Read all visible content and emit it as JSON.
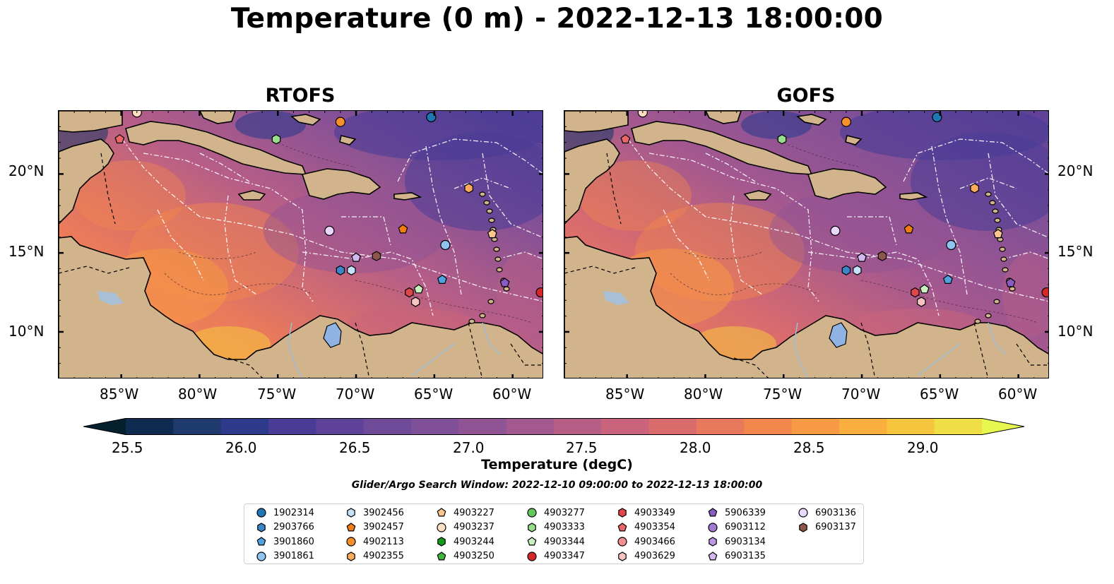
{
  "title": "Temperature (0 m) - 2022-12-13 18:00:00",
  "panels": [
    {
      "title": "RTOFS"
    },
    {
      "title": "GOFS"
    }
  ],
  "axes": {
    "lon_ticks": [
      "85°W",
      "80°W",
      "75°W",
      "70°W",
      "65°W",
      "60°W"
    ],
    "lat_ticks": [
      "20°N",
      "15°N",
      "10°N"
    ]
  },
  "colorbar": {
    "label": "Temperature (degC)",
    "ticks": [
      "25.5",
      "26.0",
      "26.5",
      "27.0",
      "27.5",
      "28.0",
      "28.5",
      "29.0"
    ],
    "min": 25.25,
    "max": 29.25,
    "colors": [
      "#04202e",
      "#0f2b4f",
      "#1f3b6d",
      "#2e3a8c",
      "#4a3c96",
      "#5e4198",
      "#6e4a98",
      "#7f4f97",
      "#905394",
      "#a3588f",
      "#b75e87",
      "#c9647c",
      "#da6c6d",
      "#e9795c",
      "#f4884c",
      "#f89a43",
      "#f9ae3e",
      "#f6c63f",
      "#f0de46",
      "#e8f74f"
    ]
  },
  "search_window": "Glider/Argo Search Window: 2022-12-10 09:00:00 to 2022-12-13 18:00:00",
  "legend": [
    {
      "label": "1902314",
      "color": "#1f77b4",
      "shape": "circle"
    },
    {
      "label": "2903766",
      "color": "#3a86c8",
      "shape": "hexagon"
    },
    {
      "label": "3901860",
      "color": "#4fa3e0",
      "shape": "pentagon"
    },
    {
      "label": "3901861",
      "color": "#8fc3f0",
      "shape": "circle"
    },
    {
      "label": "3902456",
      "color": "#c6e2fb",
      "shape": "hexagon"
    },
    {
      "label": "3902457",
      "color": "#f57c0e",
      "shape": "pentagon"
    },
    {
      "label": "4902113",
      "color": "#f7902a",
      "shape": "circle"
    },
    {
      "label": "4902355",
      "color": "#fbac5c",
      "shape": "hexagon"
    },
    {
      "label": "4903227",
      "color": "#fdc690",
      "shape": "pentagon"
    },
    {
      "label": "4903237",
      "color": "#fde0c3",
      "shape": "circle"
    },
    {
      "label": "4903244",
      "color": "#16991a",
      "shape": "hexagon"
    },
    {
      "label": "4903250",
      "color": "#3fb63a",
      "shape": "pentagon"
    },
    {
      "label": "4903277",
      "color": "#64c75c",
      "shape": "circle"
    },
    {
      "label": "4903333",
      "color": "#97dd8c",
      "shape": "hexagon"
    },
    {
      "label": "4903344",
      "color": "#c9f1c0",
      "shape": "pentagon"
    },
    {
      "label": "4903347",
      "color": "#d62728",
      "shape": "circle"
    },
    {
      "label": "4903349",
      "color": "#e0474a",
      "shape": "hexagon"
    },
    {
      "label": "4903354",
      "color": "#ea6769",
      "shape": "pentagon"
    },
    {
      "label": "4903466",
      "color": "#f39092",
      "shape": "circle"
    },
    {
      "label": "4903629",
      "color": "#f8c3c3",
      "shape": "hexagon"
    },
    {
      "label": "5906339",
      "color": "#8a5cc3",
      "shape": "pentagon"
    },
    {
      "label": "6903112",
      "color": "#a27ad4",
      "shape": "circle"
    },
    {
      "label": "6903134",
      "color": "#bb99e2",
      "shape": "hexagon"
    },
    {
      "label": "6903135",
      "color": "#d3b8ef",
      "shape": "pentagon"
    },
    {
      "label": "6903136",
      "color": "#e9d8fb",
      "shape": "circle"
    },
    {
      "label": "6903137",
      "color": "#8c564b",
      "shape": "hexagon"
    }
  ],
  "map_layers": {
    "land_color": "#d2b48c",
    "lake_color": "#8fb4e3",
    "river_color": "#9dbbd6",
    "region_line_color": "#ffffff",
    "border_style": "dashed"
  },
  "float_positions": [
    {
      "id": "1902314",
      "lon": -65.2,
      "lat": 23.6
    },
    {
      "id": "2903766",
      "lon": -71.0,
      "lat": 13.9
    },
    {
      "id": "3901860",
      "lon": -64.5,
      "lat": 13.3
    },
    {
      "id": "3901861",
      "lon": -64.3,
      "lat": 15.5
    },
    {
      "id": "3902456",
      "lon": -70.3,
      "lat": 13.9
    },
    {
      "id": "3902457",
      "lon": -67.0,
      "lat": 16.5
    },
    {
      "id": "4902113",
      "lon": -71.0,
      "lat": 23.3
    },
    {
      "id": "4902355",
      "lon": -62.8,
      "lat": 19.1
    },
    {
      "id": "4903227",
      "lon": -61.3,
      "lat": 16.2
    },
    {
      "id": "4903237",
      "lon": -84.0,
      "lat": 23.9
    },
    {
      "id": "4903333",
      "lon": -75.1,
      "lat": 22.2
    },
    {
      "id": "4903344",
      "lon": -66.0,
      "lat": 12.7
    },
    {
      "id": "4903347",
      "lon": -58.2,
      "lat": 12.5
    },
    {
      "id": "4903349",
      "lon": -66.6,
      "lat": 12.5
    },
    {
      "id": "4903354",
      "lon": -85.1,
      "lat": 22.2
    },
    {
      "id": "4903629",
      "lon": -66.2,
      "lat": 11.9
    },
    {
      "id": "5906339",
      "lon": -60.5,
      "lat": 13.1
    },
    {
      "id": "6903135",
      "lon": -70.0,
      "lat": 14.7
    },
    {
      "id": "6903136",
      "lon": -71.7,
      "lat": 16.4
    },
    {
      "id": "6903137",
      "lon": -68.7,
      "lat": 14.8
    }
  ]
}
